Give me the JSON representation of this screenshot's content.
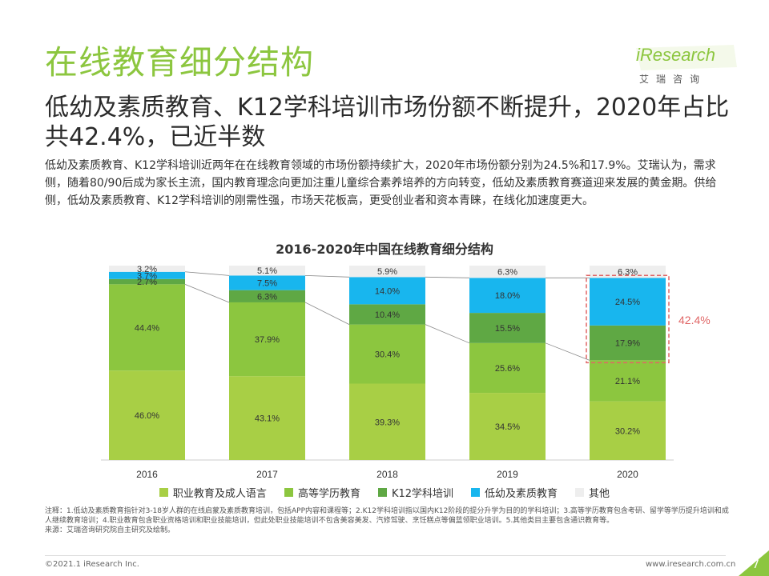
{
  "page": {
    "title": "在线教育细分结构",
    "headline": "低幼及素质教育、K12学科培训市场份额不断提升，2020年占比共42.4%，已近半数",
    "body": "低幼及素质教育、K12学科培训近两年在在线教育领域的市场份额持续扩大，2020年市场份额分别为24.5%和17.9%。艾瑞认为，需求侧，随着80/90后成为家长主流，国内教育理念向更加注重儿童综合素养培养的方向转变，低幼及素质教育赛道迎来发展的黄金期。供给侧，低幼及素质教育、K12学科培训的刚需性强，市场天花板高，更受创业者和资本青睐，在线化加速度更大。",
    "notes": "注释：1.低幼及素质教育指针对3-18岁人群的在线启蒙及素质教育培训，包括APP内容和课程等；2.K12学科培训指以国内K12阶段的提分升学为目的的学科培训；3.高等学历教育包含考研、留学等学历提升培训和成人继续教育培训；4.职业教育包含职业资格培训和职业技能培训，但此处职业技能培训不包含美容美发、汽修驾驶、烹饪糕点等偏蓝领职业培训。5.其他类目主要包含通识教育等。",
    "source": "来源：艾瑞咨询研究院自主研究及绘制。",
    "copyright": "©2021.1 iResearch Inc.",
    "website": "www.iresearch.com.cn",
    "page_number": "7"
  },
  "logo": {
    "brand": "iResearch",
    "sub": "艾瑞咨询"
  },
  "colors": {
    "vocational": "#a8cf45",
    "higher_ed": "#8cc63f",
    "k12": "#5fa844",
    "early_quality": "#18b6ee",
    "other": "#eeeeee",
    "highlight": "#e06666",
    "title_green": "#8cc63f"
  },
  "chart_data": {
    "type": "bar",
    "stacked": true,
    "title": "2016-2020年中国在线教育细分结构",
    "categories": [
      "2016",
      "2017",
      "2018",
      "2019",
      "2020"
    ],
    "series": [
      {
        "name": "职业教育及成人语言",
        "values": [
          46.0,
          43.1,
          39.3,
          34.5,
          30.2
        ]
      },
      {
        "name": "高等学历教育",
        "values": [
          44.4,
          37.9,
          30.4,
          25.6,
          21.1
        ]
      },
      {
        "name": "K12学科培训",
        "values": [
          2.7,
          6.3,
          10.4,
          15.5,
          17.9
        ]
      },
      {
        "name": "低幼及素质教育",
        "values": [
          3.7,
          7.5,
          14.0,
          18.0,
          24.5
        ]
      },
      {
        "name": "其他",
        "values": [
          3.2,
          5.1,
          5.9,
          6.3,
          6.3
        ]
      }
    ],
    "unit": "%",
    "highlight": {
      "category": "2020",
      "series": [
        "K12学科培训",
        "低幼及素质教育"
      ],
      "label": "42.4%"
    },
    "legend_position": "bottom",
    "grid": false
  }
}
